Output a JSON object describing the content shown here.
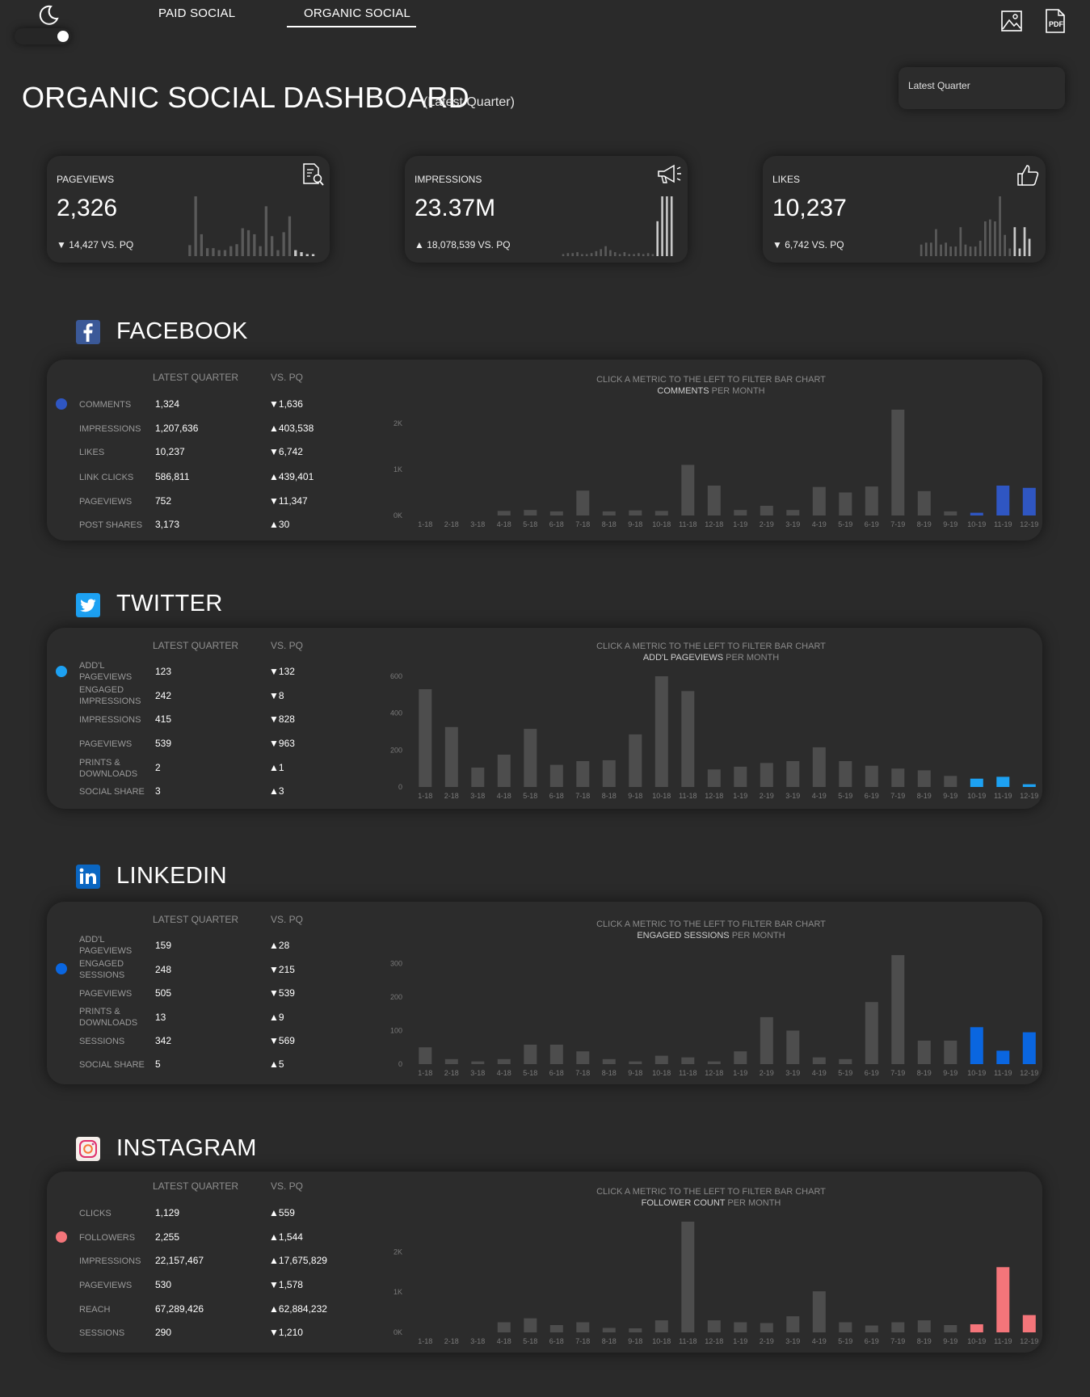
{
  "nav": {
    "tabs": [
      {
        "label": "PAID SOCIAL",
        "active": false
      },
      {
        "label": "ORGANIC SOCIAL",
        "active": true
      }
    ],
    "theme_icon": "moon-icon",
    "export_icons": [
      "image-icon",
      "pdf-icon"
    ],
    "pdf_icon_text": "PDF"
  },
  "period_select": {
    "value": "Latest Quarter"
  },
  "title": "ORGANIC SOCIAL DASHBOARD",
  "subtitle": "(Latest Quarter)",
  "kpis": [
    {
      "label": "PAGEVIEWS",
      "value": "2,326",
      "delta": "14,427 VS. PQ",
      "direction": "down",
      "icon": "document-search-icon",
      "spark": [
        11,
        60,
        22,
        8,
        8,
        6,
        6,
        10,
        12,
        28,
        26,
        22,
        10,
        50,
        20,
        6,
        24,
        40,
        6,
        4,
        2,
        2
      ]
    },
    {
      "label": "IMPRESSIONS",
      "value": "23.37M",
      "delta": "18,078,539 VS. PQ",
      "direction": "up",
      "icon": "megaphone-icon",
      "spark": [
        2,
        3,
        3,
        4,
        2,
        2,
        3,
        5,
        7,
        10,
        6,
        4,
        2,
        4,
        2,
        2,
        3,
        2,
        3,
        2,
        35,
        60,
        60,
        60
      ]
    },
    {
      "label": "LIKES",
      "value": "10,237",
      "delta": "6,742 VS. PQ",
      "direction": "down",
      "icon": "thumbs-up-icon",
      "spark": [
        12,
        14,
        14,
        28,
        12,
        14,
        10,
        10,
        30,
        12,
        10,
        10,
        16,
        36,
        38,
        36,
        62,
        22,
        8,
        30,
        8,
        30,
        18
      ]
    }
  ],
  "table_headers": {
    "current": "LATEST QUARTER",
    "previous": "VS. PQ"
  },
  "chart_prompt": "CLICK A METRIC TO THE LEFT TO FILTER BAR CHART",
  "chart_suffix": "PER MONTH",
  "sections": [
    {
      "name": "FACEBOOK",
      "icon": "facebook-icon",
      "accent": "#2f56c2",
      "selected_metric": "COMMENTS",
      "metrics": [
        {
          "label": "COMMENTS",
          "value": "1,324",
          "delta": "1,636",
          "direction": "down"
        },
        {
          "label": "IMPRESSIONS",
          "value": "1,207,636",
          "delta": "403,538",
          "direction": "up"
        },
        {
          "label": "LIKES",
          "value": "10,237",
          "delta": "6,742",
          "direction": "down"
        },
        {
          "label": "LINK CLICKS",
          "value": "586,811",
          "delta": "439,401",
          "direction": "up"
        },
        {
          "label": "PAGEVIEWS",
          "value": "752",
          "delta": "11,347",
          "direction": "down"
        },
        {
          "label": "POST SHARES",
          "value": "3,173",
          "delta": "30",
          "direction": "up"
        }
      ]
    },
    {
      "name": "TWITTER",
      "icon": "twitter-icon",
      "accent": "#1da1f2",
      "selected_metric": "ADD'L PAGEVIEWS",
      "metrics": [
        {
          "label": "ADD'L PAGEVIEWS",
          "value": "123",
          "delta": "132",
          "direction": "down"
        },
        {
          "label": "ENGAGED IMPRESSIONS",
          "value": "242",
          "delta": "8",
          "direction": "down"
        },
        {
          "label": "IMPRESSIONS",
          "value": "415",
          "delta": "828",
          "direction": "down"
        },
        {
          "label": "PAGEVIEWS",
          "value": "539",
          "delta": "963",
          "direction": "down"
        },
        {
          "label": "PRINTS & DOWNLOADS",
          "value": "2",
          "delta": "1",
          "direction": "up"
        },
        {
          "label": "SOCIAL SHARE",
          "value": "3",
          "delta": "3",
          "direction": "up"
        }
      ]
    },
    {
      "name": "LINKEDIN",
      "icon": "linkedin-icon",
      "accent": "#0a66e0",
      "selected_metric": "ENGAGED SESSIONS",
      "metrics": [
        {
          "label": "ADD'L PAGEVIEWS",
          "value": "159",
          "delta": "28",
          "direction": "up"
        },
        {
          "label": "ENGAGED SESSIONS",
          "value": "248",
          "delta": "215",
          "direction": "down"
        },
        {
          "label": "PAGEVIEWS",
          "value": "505",
          "delta": "539",
          "direction": "down"
        },
        {
          "label": "PRINTS & DOWNLOADS",
          "value": "13",
          "delta": "9",
          "direction": "up"
        },
        {
          "label": "SESSIONS",
          "value": "342",
          "delta": "569",
          "direction": "down"
        },
        {
          "label": "SOCIAL SHARE",
          "value": "5",
          "delta": "5",
          "direction": "up"
        }
      ]
    },
    {
      "name": "INSTAGRAM",
      "icon": "instagram-icon",
      "accent": "#f4757a",
      "selected_metric": "FOLLOWER COUNT",
      "metrics": [
        {
          "label": "CLICKS",
          "value": "1,129",
          "delta": "559",
          "direction": "up"
        },
        {
          "label": "FOLLOWERS",
          "value": "2,255",
          "delta": "1,544",
          "direction": "up"
        },
        {
          "label": "IMPRESSIONS",
          "value": "22,157,467",
          "delta": "17,675,829",
          "direction": "up"
        },
        {
          "label": "PAGEVIEWS",
          "value": "530",
          "delta": "1,578",
          "direction": "down"
        },
        {
          "label": "REACH",
          "value": "67,289,426",
          "delta": "62,884,232",
          "direction": "up"
        },
        {
          "label": "SESSIONS",
          "value": "290",
          "delta": "1,210",
          "direction": "down"
        }
      ]
    }
  ],
  "chart_data": [
    {
      "type": "bar",
      "section": "FACEBOOK",
      "categories": [
        "1-18",
        "2-18",
        "3-18",
        "4-18",
        "5-18",
        "6-18",
        "7-18",
        "8-18",
        "9-18",
        "10-18",
        "11-18",
        "12-18",
        "1-19",
        "2-19",
        "3-19",
        "4-19",
        "5-19",
        "6-19",
        "7-19",
        "8-19",
        "9-19",
        "10-19",
        "11-19",
        "12-19"
      ],
      "values": [
        0,
        0,
        0,
        100,
        120,
        90,
        540,
        90,
        110,
        100,
        1100,
        650,
        120,
        210,
        120,
        620,
        500,
        630,
        2300,
        530,
        90,
        60,
        650,
        600
      ],
      "highlight_from_index": 21,
      "yticks": [
        0,
        1000,
        2000
      ],
      "ytick_labels": [
        "0K",
        "1K",
        "2K"
      ],
      "ylim": [
        0,
        2300
      ]
    },
    {
      "type": "bar",
      "section": "TWITTER",
      "categories": [
        "1-18",
        "2-18",
        "3-18",
        "4-18",
        "5-18",
        "6-18",
        "7-18",
        "8-18",
        "9-18",
        "10-18",
        "11-18",
        "12-18",
        "1-19",
        "2-19",
        "3-19",
        "4-19",
        "5-19",
        "6-19",
        "7-19",
        "8-19",
        "9-19",
        "10-19",
        "11-19",
        "12-19"
      ],
      "values": [
        530,
        325,
        105,
        175,
        315,
        120,
        140,
        145,
        285,
        600,
        520,
        95,
        110,
        130,
        140,
        215,
        140,
        115,
        100,
        90,
        60,
        45,
        55,
        15
      ],
      "highlight_from_index": 21,
      "yticks": [
        0,
        200,
        400,
        600
      ],
      "ytick_labels": [
        "0",
        "200",
        "400",
        "600"
      ],
      "ylim": [
        0,
        600
      ]
    },
    {
      "type": "bar",
      "section": "LINKEDIN",
      "categories": [
        "1-18",
        "2-18",
        "3-18",
        "4-18",
        "5-18",
        "6-18",
        "7-18",
        "8-18",
        "9-18",
        "10-18",
        "11-18",
        "12-18",
        "1-19",
        "2-19",
        "3-19",
        "4-19",
        "5-19",
        "6-19",
        "7-19",
        "8-19",
        "9-19",
        "10-19",
        "11-19",
        "12-19"
      ],
      "values": [
        50,
        15,
        8,
        15,
        58,
        58,
        38,
        15,
        8,
        25,
        20,
        8,
        38,
        140,
        100,
        20,
        15,
        185,
        325,
        70,
        70,
        110,
        40,
        95
      ],
      "highlight_from_index": 21,
      "yticks": [
        0,
        100,
        200,
        300
      ],
      "ytick_labels": [
        "0",
        "100",
        "200",
        "300"
      ],
      "ylim": [
        0,
        330
      ]
    },
    {
      "type": "bar",
      "section": "INSTAGRAM",
      "categories": [
        "1-18",
        "2-18",
        "3-18",
        "4-18",
        "5-18",
        "6-18",
        "7-18",
        "8-18",
        "9-18",
        "10-18",
        "11-18",
        "12-18",
        "1-19",
        "2-19",
        "3-19",
        "4-19",
        "5-19",
        "6-19",
        "7-19",
        "8-19",
        "9-19",
        "10-19",
        "11-19",
        "12-19"
      ],
      "values": [
        0,
        0,
        0,
        250,
        350,
        180,
        250,
        110,
        100,
        300,
        2750,
        300,
        250,
        230,
        400,
        1020,
        250,
        170,
        250,
        300,
        180,
        200,
        1620,
        430
      ],
      "highlight_from_index": 21,
      "yticks": [
        0,
        1000,
        2000
      ],
      "ytick_labels": [
        "0K",
        "1K",
        "2K"
      ],
      "ylim": [
        0,
        2750
      ]
    }
  ]
}
